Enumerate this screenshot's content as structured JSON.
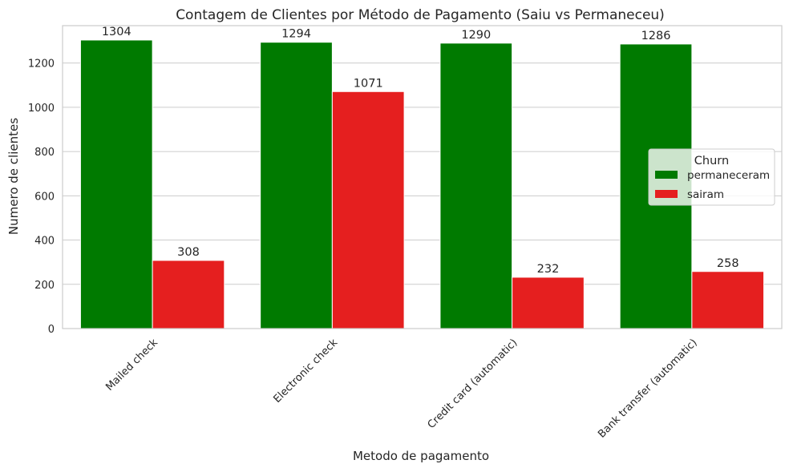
{
  "chart_data": {
    "type": "bar",
    "title": "Contagem de Clientes por Método de Pagamento (Saiu vs Permaneceu)",
    "xlabel": "Metodo de pagamento",
    "ylabel": "Numero de clientes",
    "categories": [
      "Mailed check",
      "Electronic check",
      "Credit card (automatic)",
      "Bank transfer (automatic)"
    ],
    "series": [
      {
        "name": "permaneceram",
        "color": "#007a00",
        "values": [
          1304,
          1294,
          1290,
          1286
        ]
      },
      {
        "name": "sairam",
        "color": "#e51f1f",
        "values": [
          308,
          1071,
          232,
          258
        ]
      }
    ],
    "ylim": [
      0,
      1369
    ],
    "yticks": [
      0,
      200,
      400,
      600,
      800,
      1000,
      1200
    ],
    "grid": true,
    "legend": {
      "title": "Churn",
      "placement": "center-right"
    },
    "tick_rotation_degrees": 45
  }
}
